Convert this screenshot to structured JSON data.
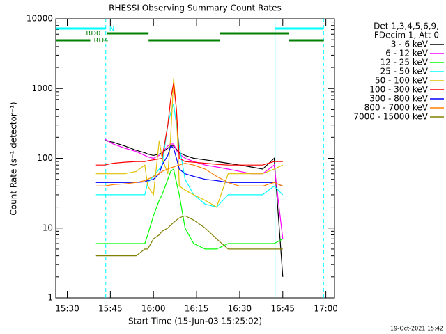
{
  "chart_data": {
    "type": "line",
    "title": "RHESSI Observing Summary Count Rates",
    "xlabel": "Start Time (15-Jun-03 15:25:02)",
    "ylabel": "Count Rate (s⁻¹ detector⁻¹)",
    "footer": "19-Oct-2021 15:42",
    "legend_title": [
      "Det 1,3,4,5,6,9,",
      "FDecim 1, Att 0"
    ],
    "legend": "outside-right",
    "log_y": true,
    "xlim": [
      26,
      123
    ],
    "ylim": [
      1,
      10000
    ],
    "xticks": [
      {
        "value": 30,
        "label": "15:30"
      },
      {
        "value": 45,
        "label": "15:45"
      },
      {
        "value": 60,
        "label": "16:00"
      },
      {
        "value": 75,
        "label": "16:15"
      },
      {
        "value": 90,
        "label": "16:30"
      },
      {
        "value": 105,
        "label": "16:45"
      },
      {
        "value": 120,
        "label": "17:00"
      }
    ],
    "yticks": [
      1,
      10,
      100,
      1000,
      10000
    ],
    "x": [
      40,
      43,
      46,
      50,
      54,
      57,
      58,
      60,
      62,
      63,
      65,
      66,
      67,
      68,
      69,
      71,
      74,
      78,
      82,
      86,
      90,
      94,
      98,
      102,
      105
    ],
    "series": [
      {
        "name": "3 - 6 keV",
        "color": "#000000",
        "values": [
          null,
          180,
          170,
          150,
          130,
          120,
          115,
          110,
          115,
          120,
          140,
          150,
          150,
          135,
          120,
          110,
          100,
          95,
          90,
          85,
          80,
          75,
          70,
          100,
          2
        ]
      },
      {
        "name": "6 - 12 keV",
        "color": "#ff00ff",
        "values": [
          null,
          190,
          160,
          140,
          125,
          110,
          105,
          100,
          110,
          120,
          150,
          160,
          160,
          130,
          115,
          100,
          90,
          80,
          75,
          70,
          65,
          60,
          60,
          80,
          7
        ]
      },
      {
        "name": "12 - 25 keV",
        "color": "#00ff00",
        "values": [
          6,
          6,
          6,
          6,
          6,
          6,
          8,
          15,
          25,
          30,
          50,
          65,
          70,
          45,
          30,
          10,
          6,
          5,
          5,
          6,
          6,
          6,
          6,
          6,
          7
        ]
      },
      {
        "name": "25 - 50 keV",
        "color": "#00ffff",
        "values": [
          30,
          30,
          30,
          30,
          30,
          30,
          45,
          55,
          70,
          80,
          300,
          450,
          600,
          300,
          150,
          50,
          30,
          22,
          20,
          30,
          30,
          30,
          30,
          40,
          30
        ]
      },
      {
        "name": "50 - 100 keV",
        "color": "#e0c000",
        "values": [
          60,
          60,
          60,
          60,
          65,
          80,
          40,
          30,
          180,
          100,
          60,
          200,
          1400,
          500,
          40,
          35,
          30,
          25,
          20,
          60,
          60,
          60,
          60,
          70,
          80
        ]
      },
      {
        "name": "100 - 300 keV",
        "color": "#ff0000",
        "values": [
          80,
          80,
          85,
          88,
          90,
          90,
          92,
          95,
          98,
          100,
          300,
          700,
          1200,
          500,
          100,
          90,
          88,
          85,
          82,
          80,
          80,
          80,
          80,
          90,
          90
        ]
      },
      {
        "name": "300 - 800 keV",
        "color": "#0000ff",
        "values": [
          45,
          45,
          45,
          45,
          45,
          46,
          48,
          50,
          60,
          80,
          110,
          150,
          140,
          100,
          70,
          60,
          55,
          50,
          48,
          45,
          45,
          45,
          45,
          45,
          40
        ]
      },
      {
        "name": "800 - 7000 keV",
        "color": "#ff8000",
        "values": [
          40,
          40,
          42,
          43,
          45,
          48,
          50,
          55,
          60,
          65,
          70,
          73,
          75,
          78,
          80,
          85,
          80,
          70,
          55,
          45,
          40,
          40,
          40,
          45,
          40
        ]
      },
      {
        "name": "7000 - 15000 keV",
        "color": "#808000",
        "values": [
          4,
          4,
          4,
          4,
          4,
          5,
          5,
          7,
          8,
          9,
          10,
          11,
          12,
          13,
          14,
          15,
          13,
          10,
          7,
          5,
          5,
          5,
          5,
          5,
          5
        ]
      }
    ],
    "flags": [
      {
        "label": "N",
        "color": "#00ffff",
        "segments": [
          [
            26,
            43.4
          ],
          [
            102.3,
            119.2
          ]
        ]
      },
      {
        "label": "RD0",
        "color": "#008000",
        "segments": [
          [
            43.8,
            58.3
          ],
          [
            83,
            107.2
          ]
        ]
      },
      {
        "label": "RD4",
        "color": "#008000",
        "segments": [
          [
            26,
            38
          ],
          [
            58.3,
            83
          ],
          [
            107.2,
            119.3
          ]
        ]
      }
    ],
    "solid_vlines": [
      102.3
    ],
    "dashed_vlines": [
      43.4,
      119.2
    ]
  }
}
